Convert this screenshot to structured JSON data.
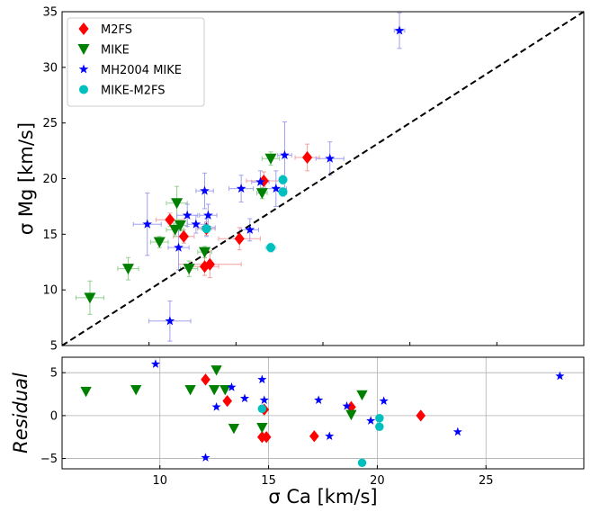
{
  "chart_data": [
    {
      "type": "scatter",
      "panel": "top",
      "ylabel": "σ Mg [km/s]",
      "xlim": [
        5,
        35
      ],
      "ylim": [
        5,
        35
      ],
      "yticks": [
        "5",
        "10",
        "15",
        "20",
        "25",
        "30",
        "35"
      ],
      "xticks": [],
      "grid": false,
      "legend_position": "top-left",
      "reference_line": {
        "style": "dashed",
        "from": [
          5,
          5
        ],
        "to": [
          35,
          35
        ]
      },
      "series": [
        {
          "name": "M2FS",
          "marker": "diamond",
          "color": "#ff0000",
          "error_color": "#f4a0a0",
          "points": [
            {
              "x": 11.2,
              "y": 16.3,
              "ex": 0.8,
              "ey": 0.6
            },
            {
              "x": 12.0,
              "y": 14.8,
              "ex": 0.6,
              "ey": 0.6
            },
            {
              "x": 13.3,
              "y": 15.5,
              "ex": 0.5,
              "ey": 0.6
            },
            {
              "x": 13.2,
              "y": 12.1,
              "ex": 0.8,
              "ey": 0.8
            },
            {
              "x": 13.5,
              "y": 12.3,
              "ex": 1.8,
              "ey": 1.2
            },
            {
              "x": 15.2,
              "y": 14.6,
              "ex": 1.2,
              "ey": 1.0
            },
            {
              "x": 16.6,
              "y": 19.8,
              "ex": 1.0,
              "ey": 0.8
            },
            {
              "x": 19.1,
              "y": 21.9,
              "ex": 0.7,
              "ey": 1.2
            }
          ]
        },
        {
          "name": "MIKE",
          "marker": "triangle-down",
          "color": "#008000",
          "error_color": "#90d090",
          "points": [
            {
              "x": 6.6,
              "y": 9.3,
              "ex": 0.8,
              "ey": 1.5
            },
            {
              "x": 8.8,
              "y": 11.9,
              "ex": 0.6,
              "ey": 1.0
            },
            {
              "x": 10.6,
              "y": 14.3,
              "ex": 0.5,
              "ey": 0.5
            },
            {
              "x": 11.5,
              "y": 15.4,
              "ex": 0.5,
              "ey": 0.6
            },
            {
              "x": 11.6,
              "y": 17.8,
              "ex": 0.6,
              "ey": 1.5
            },
            {
              "x": 11.8,
              "y": 15.8,
              "ex": 0.4,
              "ey": 0.5
            },
            {
              "x": 12.3,
              "y": 11.9,
              "ex": 0.5,
              "ey": 0.7
            },
            {
              "x": 13.2,
              "y": 13.4,
              "ex": 0.4,
              "ey": 0.5
            },
            {
              "x": 16.5,
              "y": 18.7,
              "ex": 0.3,
              "ey": 0.5
            },
            {
              "x": 17.0,
              "y": 21.8,
              "ex": 0.5,
              "ey": 0.6
            }
          ]
        },
        {
          "name": "MH2004 MIKE",
          "marker": "star",
          "color": "#0000ff",
          "error_color": "#a0a0f0",
          "points": [
            {
              "x": 9.9,
              "y": 15.9,
              "ex": 0.8,
              "ey": 2.8
            },
            {
              "x": 11.2,
              "y": 7.2,
              "ex": 1.2,
              "ey": 1.8
            },
            {
              "x": 11.7,
              "y": 13.8,
              "ex": 0.6,
              "ey": 2.0
            },
            {
              "x": 12.2,
              "y": 16.7,
              "ex": 0.6,
              "ey": 1.0
            },
            {
              "x": 12.7,
              "y": 15.9,
              "ex": 0.5,
              "ey": 0.8
            },
            {
              "x": 13.2,
              "y": 18.9,
              "ex": 0.5,
              "ey": 1.6
            },
            {
              "x": 13.4,
              "y": 16.7,
              "ex": 0.5,
              "ey": 1.0
            },
            {
              "x": 13.3,
              "y": 15.6,
              "ex": 0.5,
              "ey": 0.8
            },
            {
              "x": 15.3,
              "y": 19.1,
              "ex": 0.7,
              "ey": 1.2
            },
            {
              "x": 15.8,
              "y": 15.4,
              "ex": 0.5,
              "ey": 1.0
            },
            {
              "x": 16.4,
              "y": 19.7,
              "ex": 0.5,
              "ey": 1.0
            },
            {
              "x": 17.3,
              "y": 19.1,
              "ex": 0.6,
              "ey": 1.6
            },
            {
              "x": 17.8,
              "y": 22.1,
              "ex": 0.4,
              "ey": 3.0
            },
            {
              "x": 20.4,
              "y": 21.8,
              "ex": 0.8,
              "ey": 1.5
            },
            {
              "x": 24.4,
              "y": 33.3,
              "ex": 0.3,
              "ey": 1.6
            }
          ]
        },
        {
          "name": "MIKE-M2FS",
          "marker": "circle",
          "color": "#00bfbf",
          "error_color": "#a0e0e0",
          "points": [
            {
              "x": 13.3,
              "y": 15.5,
              "ex": 0.3,
              "ey": 0.4
            },
            {
              "x": 17.0,
              "y": 13.8,
              "ex": 0.3,
              "ey": 0.4
            },
            {
              "x": 17.7,
              "y": 18.8,
              "ex": 0.2,
              "ey": 0.4
            },
            {
              "x": 17.7,
              "y": 19.9,
              "ex": 0.2,
              "ey": 0.4
            }
          ]
        }
      ]
    },
    {
      "type": "scatter",
      "panel": "bottom",
      "xlabel": "σ Ca [km/s]",
      "ylabel": "Residual",
      "xlim": [
        5.5,
        29.5
      ],
      "ylim": [
        -6.2,
        6.8
      ],
      "xticks": [
        "10",
        "15",
        "20",
        "25"
      ],
      "yticks": [
        "−5",
        "0",
        "5"
      ],
      "grid": true,
      "series": [
        {
          "name": "M2FS",
          "marker": "diamond",
          "color": "#ff0000",
          "points": [
            {
              "x": 12.1,
              "y": 4.2
            },
            {
              "x": 13.1,
              "y": 1.7
            },
            {
              "x": 14.8,
              "y": 0.7
            },
            {
              "x": 14.7,
              "y": -2.5
            },
            {
              "x": 14.9,
              "y": -2.5
            },
            {
              "x": 17.1,
              "y": -2.4
            },
            {
              "x": 18.8,
              "y": 1.0
            },
            {
              "x": 22.0,
              "y": 0.0
            }
          ]
        },
        {
          "name": "MIKE",
          "marker": "triangle-down",
          "color": "#008000",
          "points": [
            {
              "x": 6.6,
              "y": 2.8
            },
            {
              "x": 8.9,
              "y": 3.0
            },
            {
              "x": 11.4,
              "y": 3.0
            },
            {
              "x": 12.5,
              "y": 3.0
            },
            {
              "x": 12.6,
              "y": 5.3
            },
            {
              "x": 13.0,
              "y": 3.0
            },
            {
              "x": 13.4,
              "y": -1.5
            },
            {
              "x": 14.7,
              "y": -1.4
            },
            {
              "x": 18.8,
              "y": 0.1
            },
            {
              "x": 19.3,
              "y": 2.4
            }
          ]
        },
        {
          "name": "MH2004 MIKE",
          "marker": "star",
          "color": "#0000ff",
          "points": [
            {
              "x": 9.8,
              "y": 6.0
            },
            {
              "x": 12.1,
              "y": -4.9
            },
            {
              "x": 12.6,
              "y": 1.0
            },
            {
              "x": 13.3,
              "y": 3.3
            },
            {
              "x": 13.9,
              "y": 2.0
            },
            {
              "x": 14.7,
              "y": 4.2
            },
            {
              "x": 14.8,
              "y": 1.8
            },
            {
              "x": 17.3,
              "y": 1.8
            },
            {
              "x": 17.8,
              "y": -2.4
            },
            {
              "x": 18.6,
              "y": 1.1
            },
            {
              "x": 19.7,
              "y": -0.6
            },
            {
              "x": 20.3,
              "y": 1.7
            },
            {
              "x": 23.7,
              "y": -1.9
            },
            {
              "x": 28.4,
              "y": 4.6
            }
          ]
        },
        {
          "name": "MIKE-M2FS",
          "marker": "circle",
          "color": "#00bfbf",
          "points": [
            {
              "x": 14.7,
              "y": 0.8
            },
            {
              "x": 19.3,
              "y": -5.5
            },
            {
              "x": 20.1,
              "y": -0.3
            },
            {
              "x": 20.1,
              "y": -1.3
            }
          ]
        }
      ]
    }
  ]
}
